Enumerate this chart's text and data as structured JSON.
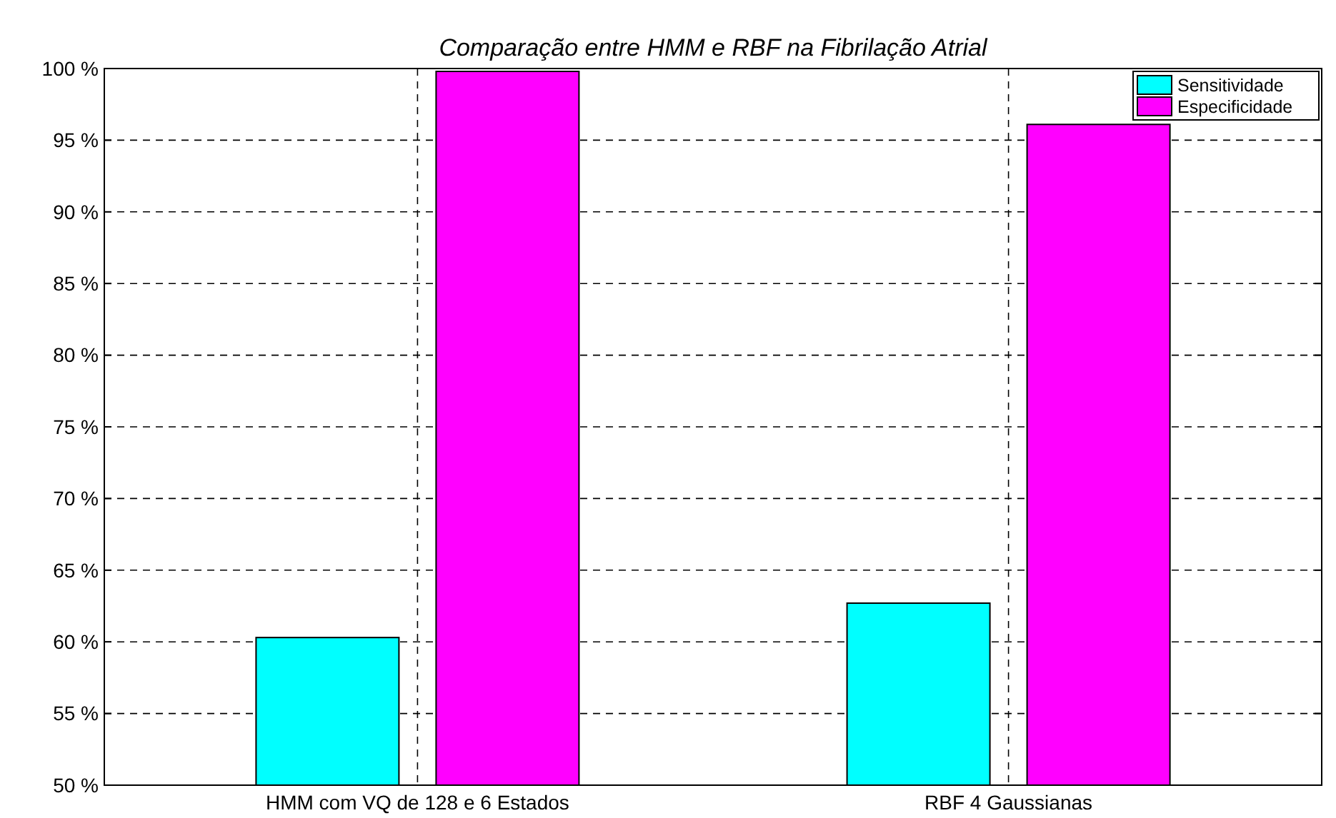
{
  "chart_data": {
    "type": "bar",
    "title": "Comparação entre HMM e RBF na Fibrilação Atrial",
    "categories": [
      "HMM com VQ de 128 e 6 Estados",
      "RBF 4 Gaussianas"
    ],
    "series": [
      {
        "name": "Sensitividade",
        "color": "#00ffff",
        "values": [
          60.3,
          62.7
        ]
      },
      {
        "name": "Especificidade",
        "color": "#ff00ff",
        "values": [
          99.8,
          96.1
        ]
      }
    ],
    "ylim": [
      50,
      100
    ],
    "yticks": [
      {
        "value": 50,
        "label": "50 %"
      },
      {
        "value": 55,
        "label": "55 %"
      },
      {
        "value": 60,
        "label": "60 %"
      },
      {
        "value": 65,
        "label": "65 %"
      },
      {
        "value": 70,
        "label": "70 %"
      },
      {
        "value": 75,
        "label": "75 %"
      },
      {
        "value": 80,
        "label": "80 %"
      },
      {
        "value": 85,
        "label": "85 %"
      },
      {
        "value": 90,
        "label": "90 %"
      },
      {
        "value": 95,
        "label": "95 %"
      },
      {
        "value": 100,
        "label": "100 %"
      }
    ],
    "grid": true,
    "legend": "top right"
  }
}
